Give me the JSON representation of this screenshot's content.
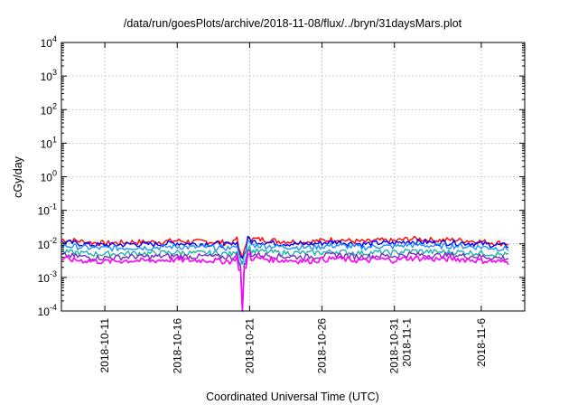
{
  "chart_data": {
    "type": "line",
    "title": "/data/run/goesPlots/archive/2018-11-08/flux/../bryn/31daysMars.plot",
    "xlabel": "Coordinated Universal Time (UTC)",
    "ylabel": "cGy/day",
    "yscale": "log",
    "ylim": [
      0.0001,
      10000
    ],
    "xlim": [
      "2018-10-08",
      "2018-11-09"
    ],
    "grid": true,
    "x_ticks": [
      {
        "date": "2018-10-11",
        "lines": [
          "2018-10-11"
        ]
      },
      {
        "date": "2018-10-16",
        "lines": [
          "2018-10-16"
        ]
      },
      {
        "date": "2018-10-21",
        "lines": [
          "2018-10-21"
        ]
      },
      {
        "date": "2018-10-26",
        "lines": [
          "2018-10-26"
        ]
      },
      {
        "date": "2018-10-31",
        "lines": [
          "2018-10-31",
          "2018-11-1"
        ]
      },
      {
        "date": "2018-11-06",
        "lines": [
          "2018-11-6"
        ]
      }
    ],
    "y_ticks": [
      {
        "value": 0.0001,
        "base": "10",
        "exp": "-4"
      },
      {
        "value": 0.001,
        "base": "10",
        "exp": "-3"
      },
      {
        "value": 0.01,
        "base": "10",
        "exp": "-2"
      },
      {
        "value": 0.1,
        "base": "10",
        "exp": "-1"
      },
      {
        "value": 1,
        "base": "10",
        "exp": "0"
      },
      {
        "value": 10,
        "base": "10",
        "exp": "1"
      },
      {
        "value": 100,
        "base": "10",
        "exp": "2"
      },
      {
        "value": 1000,
        "base": "10",
        "exp": "3"
      },
      {
        "value": 10000,
        "base": "10",
        "exp": "4"
      }
    ],
    "series": [
      {
        "color": "#ff0000",
        "values": [
          0.0135,
          0.0125,
          0.011,
          0.0105,
          0.0108,
          0.0115,
          0.0112,
          0.0118,
          0.0125,
          0.0115,
          0.0118,
          0.0112,
          0.0108,
          0.014,
          0.0135,
          0.0122,
          0.0118,
          0.0115,
          0.0125,
          0.0138,
          0.0122,
          0.0115,
          0.0128,
          0.0122,
          0.0142,
          0.0138,
          0.0128,
          0.0132,
          0.0125,
          0.0118,
          0.0108,
          0.0102
        ]
      },
      {
        "color": "#0000ff",
        "values": [
          0.0112,
          0.0105,
          0.0095,
          0.0092,
          0.0094,
          0.0099,
          0.0097,
          0.0101,
          0.0106,
          0.0099,
          0.0101,
          0.0096,
          0.0093,
          0.0118,
          0.0113,
          0.0104,
          0.0101,
          0.0099,
          0.0106,
          0.0116,
          0.0104,
          0.0099,
          0.0108,
          0.0104,
          0.0119,
          0.0115,
          0.0108,
          0.0111,
          0.0106,
          0.0101,
          0.0093,
          0.0088
        ]
      },
      {
        "color": "#1e90ff",
        "values": [
          0.0088,
          0.0083,
          0.0076,
          0.0074,
          0.0075,
          0.0079,
          0.0077,
          0.0081,
          0.0084,
          0.0079,
          0.0081,
          0.0077,
          0.0075,
          0.0093,
          0.0089,
          0.0083,
          0.0081,
          0.0079,
          0.0084,
          0.0091,
          0.0083,
          0.0079,
          0.0086,
          0.0083,
          0.0094,
          0.0091,
          0.0086,
          0.0088,
          0.0084,
          0.0081,
          0.0075,
          0.0071
        ]
      },
      {
        "color": "#20b2aa",
        "values": [
          0.0058,
          0.0055,
          0.0051,
          0.005,
          0.0051,
          0.0053,
          0.0052,
          0.0054,
          0.0056,
          0.0053,
          0.0054,
          0.0052,
          0.005,
          0.0062,
          0.0059,
          0.0055,
          0.0054,
          0.0053,
          0.0056,
          0.006,
          0.0055,
          0.0053,
          0.0057,
          0.0055,
          0.0062,
          0.006,
          0.0057,
          0.0058,
          0.0056,
          0.0054,
          0.005,
          0.0047
        ]
      },
      {
        "color": "#7b2fbf",
        "values": [
          0.0046,
          0.0043,
          0.004,
          0.0039,
          0.004,
          0.0042,
          0.0041,
          0.0043,
          0.0044,
          0.0042,
          0.0043,
          0.0041,
          0.004,
          0.0049,
          0.0047,
          0.0043,
          0.0042,
          0.0041,
          0.0044,
          0.0048,
          0.0043,
          0.0042,
          0.0045,
          0.0043,
          0.0049,
          0.0047,
          0.0045,
          0.0046,
          0.0044,
          0.0042,
          0.0039,
          0.0037
        ]
      },
      {
        "color": "#ff00ff",
        "values": [
          0.0036,
          0.0033,
          0.0031,
          0.003,
          0.0031,
          0.0032,
          0.0031,
          0.0033,
          0.0034,
          0.0032,
          0.0033,
          0.0031,
          0.003,
          0.0038,
          0.0036,
          0.0033,
          0.0032,
          0.0031,
          0.0034,
          0.0037,
          0.0033,
          0.0032,
          0.0035,
          0.0033,
          0.0038,
          0.0037,
          0.0035,
          0.0036,
          0.0034,
          0.0032,
          0.003,
          0.0028
        ]
      }
    ],
    "dip": {
      "date": "2018-10-20",
      "min": 0.0001
    }
  }
}
